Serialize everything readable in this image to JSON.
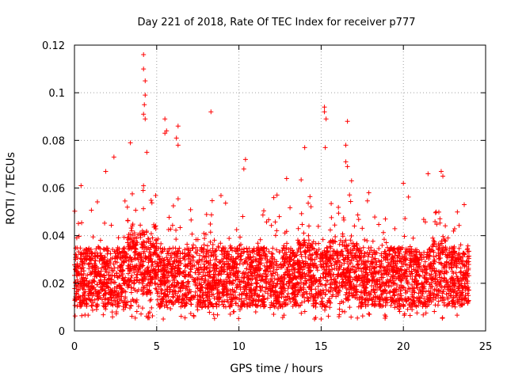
{
  "chart_data": {
    "type": "scatter",
    "title": "Day 221 of 2018, Rate Of TEC Index for receiver p777",
    "xlabel": "GPS time / hours",
    "ylabel": "ROTI / TECUs",
    "xlim": [
      0,
      25
    ],
    "ylim": [
      0,
      0.12
    ],
    "x_ticks": [
      0,
      5,
      10,
      15,
      20,
      25
    ],
    "x_tick_labels": [
      "0",
      "5",
      "10",
      "15",
      "20",
      "25"
    ],
    "y_ticks": [
      0,
      0.02,
      0.04,
      0.06,
      0.08,
      0.1,
      0.12
    ],
    "y_tick_labels": [
      "0",
      "0.02",
      "0.04",
      "0.06",
      "0.08",
      "0.1",
      "0.12"
    ],
    "grid": true,
    "marker": "plus",
    "colors": {
      "series": "#ff0000",
      "grid": "#a0a0a0",
      "axis": "#000000"
    },
    "series": [
      {
        "name": "ROTI",
        "x_range": [
          0,
          24
        ],
        "typical_range": [
          0.01,
          0.035
        ],
        "notable_points": [
          {
            "x": 4.2,
            "y": 0.116
          },
          {
            "x": 4.2,
            "y": 0.11
          },
          {
            "x": 4.3,
            "y": 0.105
          },
          {
            "x": 4.3,
            "y": 0.099
          },
          {
            "x": 4.25,
            "y": 0.095
          },
          {
            "x": 4.2,
            "y": 0.091
          },
          {
            "x": 4.3,
            "y": 0.089
          },
          {
            "x": 3.4,
            "y": 0.079
          },
          {
            "x": 5.5,
            "y": 0.089
          },
          {
            "x": 5.6,
            "y": 0.084
          },
          {
            "x": 5.5,
            "y": 0.083
          },
          {
            "x": 6.3,
            "y": 0.086
          },
          {
            "x": 6.2,
            "y": 0.081
          },
          {
            "x": 6.3,
            "y": 0.078
          },
          {
            "x": 8.3,
            "y": 0.092
          },
          {
            "x": 10.4,
            "y": 0.072
          },
          {
            "x": 10.3,
            "y": 0.068
          },
          {
            "x": 14.0,
            "y": 0.077
          },
          {
            "x": 15.2,
            "y": 0.094
          },
          {
            "x": 15.2,
            "y": 0.092
          },
          {
            "x": 15.3,
            "y": 0.089
          },
          {
            "x": 15.25,
            "y": 0.077
          },
          {
            "x": 16.6,
            "y": 0.088
          },
          {
            "x": 16.5,
            "y": 0.078
          },
          {
            "x": 16.5,
            "y": 0.071
          },
          {
            "x": 16.6,
            "y": 0.069
          },
          {
            "x": 4.4,
            "y": 0.075
          },
          {
            "x": 2.4,
            "y": 0.073
          },
          {
            "x": 1.9,
            "y": 0.067
          },
          {
            "x": 0.4,
            "y": 0.061
          },
          {
            "x": 21.5,
            "y": 0.066
          },
          {
            "x": 22.3,
            "y": 0.067
          },
          {
            "x": 22.4,
            "y": 0.065
          },
          {
            "x": 23.7,
            "y": 0.053
          },
          {
            "x": 12.9,
            "y": 0.064
          },
          {
            "x": 17.9,
            "y": 0.058
          },
          {
            "x": 20.0,
            "y": 0.062
          },
          {
            "x": 5.4,
            "y": 0.005
          },
          {
            "x": 14.6,
            "y": 0.005
          },
          {
            "x": 15.0,
            "y": 0.005
          }
        ]
      }
    ]
  }
}
